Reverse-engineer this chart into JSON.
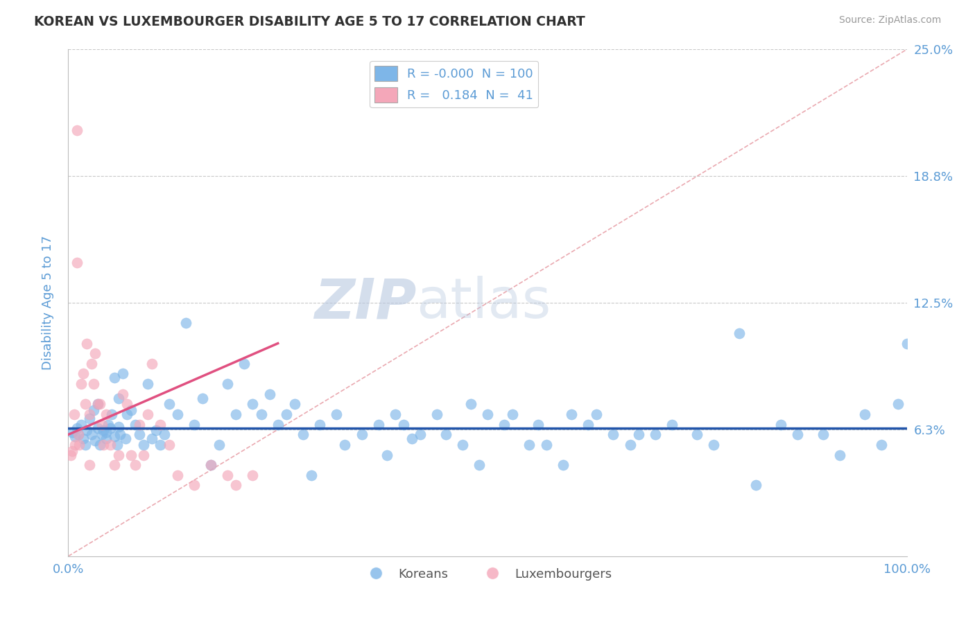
{
  "title": "KOREAN VS LUXEMBOURGER DISABILITY AGE 5 TO 17 CORRELATION CHART",
  "source_text": "Source: ZipAtlas.com",
  "ylabel": "Disability Age 5 to 17",
  "xlim": [
    0,
    100
  ],
  "ylim": [
    0,
    25
  ],
  "yticks": [
    6.25,
    12.5,
    18.75,
    25.0
  ],
  "ytick_labels": [
    "6.3%",
    "12.5%",
    "18.8%",
    "25.0%"
  ],
  "xtick_labels": [
    "0.0%",
    "100.0%"
  ],
  "korean_R": "-0.000",
  "korean_N": 100,
  "luxembourger_R": "0.184",
  "luxembourger_N": 41,
  "legend_entries": [
    "Koreans",
    "Luxembourgers"
  ],
  "blue_scatter_color": "#7EB6E8",
  "pink_scatter_color": "#F4A7B9",
  "blue_line_color": "#2255AA",
  "pink_line_color": "#E05080",
  "diag_line_color": "#E8A0A8",
  "axis_label_color": "#5B9BD5",
  "title_color": "#303030",
  "watermark_color": "#D0D8EC",
  "background_color": "#FFFFFF",
  "scatter_alpha": 0.65,
  "scatter_size": 120,
  "korean_x": [
    0.5,
    0.8,
    1.0,
    1.2,
    1.5,
    1.8,
    2.0,
    2.2,
    2.5,
    2.8,
    3.0,
    3.2,
    3.5,
    3.8,
    4.0,
    4.2,
    4.5,
    4.8,
    5.0,
    5.2,
    5.5,
    5.8,
    6.0,
    6.2,
    6.5,
    6.8,
    7.0,
    7.5,
    8.0,
    8.5,
    9.0,
    9.5,
    10.0,
    10.5,
    11.0,
    11.5,
    12.0,
    13.0,
    14.0,
    15.0,
    16.0,
    17.0,
    18.0,
    19.0,
    20.0,
    21.0,
    22.0,
    23.0,
    24.0,
    25.0,
    26.0,
    27.0,
    28.0,
    29.0,
    30.0,
    32.0,
    33.0,
    35.0,
    37.0,
    38.0,
    39.0,
    40.0,
    41.0,
    42.0,
    44.0,
    45.0,
    47.0,
    48.0,
    49.0,
    50.0,
    52.0,
    53.0,
    55.0,
    56.0,
    57.0,
    59.0,
    60.0,
    62.0,
    63.0,
    65.0,
    67.0,
    68.0,
    70.0,
    72.0,
    75.0,
    77.0,
    80.0,
    82.0,
    85.0,
    87.0,
    90.0,
    92.0,
    95.0,
    97.0,
    99.0,
    100.0,
    3.5,
    4.5,
    5.5,
    6.0
  ],
  "korean_y": [
    6.1,
    5.9,
    6.3,
    6.0,
    6.5,
    5.8,
    5.5,
    6.2,
    6.8,
    6.0,
    7.2,
    5.7,
    7.5,
    5.5,
    6.0,
    6.2,
    5.8,
    6.5,
    6.3,
    7.0,
    8.8,
    5.5,
    7.8,
    6.0,
    9.0,
    5.8,
    7.0,
    7.2,
    6.5,
    6.0,
    5.5,
    8.5,
    5.8,
    6.2,
    5.5,
    6.0,
    7.5,
    7.0,
    11.5,
    6.5,
    7.8,
    4.5,
    5.5,
    8.5,
    7.0,
    9.5,
    7.5,
    7.0,
    8.0,
    6.5,
    7.0,
    7.5,
    6.0,
    4.0,
    6.5,
    7.0,
    5.5,
    6.0,
    6.5,
    5.0,
    7.0,
    6.5,
    5.8,
    6.0,
    7.0,
    6.0,
    5.5,
    7.5,
    4.5,
    7.0,
    6.5,
    7.0,
    5.5,
    6.5,
    5.5,
    4.5,
    7.0,
    6.5,
    7.0,
    6.0,
    5.5,
    6.0,
    6.0,
    6.5,
    6.0,
    5.5,
    11.0,
    3.5,
    6.5,
    6.0,
    6.0,
    5.0,
    7.0,
    5.5,
    7.5,
    10.5,
    6.3,
    6.1,
    5.9,
    6.4
  ],
  "luxembourger_x": [
    0.3,
    0.5,
    0.7,
    0.8,
    1.0,
    1.2,
    1.3,
    1.5,
    1.8,
    2.0,
    2.2,
    2.5,
    2.8,
    3.0,
    3.2,
    3.5,
    3.8,
    4.0,
    4.2,
    4.5,
    5.0,
    5.5,
    6.0,
    6.5,
    7.0,
    7.5,
    8.0,
    8.5,
    9.0,
    9.5,
    10.0,
    11.0,
    12.0,
    13.0,
    15.0,
    17.0,
    19.0,
    20.0,
    22.0,
    1.0,
    2.5
  ],
  "luxembourger_y": [
    5.0,
    5.2,
    7.0,
    5.5,
    21.0,
    6.0,
    5.5,
    8.5,
    9.0,
    7.5,
    10.5,
    7.0,
    9.5,
    8.5,
    10.0,
    7.5,
    7.5,
    6.5,
    5.5,
    7.0,
    5.5,
    4.5,
    5.0,
    8.0,
    7.5,
    5.0,
    4.5,
    6.5,
    5.0,
    7.0,
    9.5,
    6.5,
    5.5,
    4.0,
    3.5,
    4.5,
    4.0,
    3.5,
    4.0,
    14.5,
    4.5
  ],
  "pink_trend_x": [
    0,
    25
  ],
  "pink_trend_y_start": 6.0,
  "pink_trend_y_end": 10.5,
  "blue_trend_y": 6.3
}
